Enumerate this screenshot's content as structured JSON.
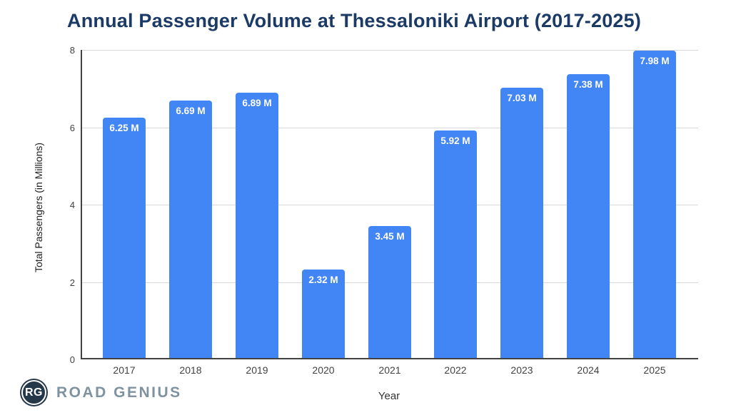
{
  "chart_data": {
    "type": "bar",
    "title": "Annual Passenger Volume at Thessaloniki Airport (2017-2025)",
    "xlabel": "Year",
    "ylabel": "Total Passengers (in Millions)",
    "categories": [
      "2017",
      "2018",
      "2019",
      "2020",
      "2021",
      "2022",
      "2023",
      "2024",
      "2025"
    ],
    "values": [
      6.25,
      6.69,
      6.89,
      2.32,
      3.45,
      5.92,
      7.03,
      7.38,
      7.98
    ],
    "bar_labels": [
      "6.25 M",
      "6.69 M",
      "6.89 M",
      "2.32 M",
      "3.45 M",
      "5.92 M",
      "7.03 M",
      "7.38 M",
      "7.98 M"
    ],
    "ylim": [
      0,
      8
    ],
    "yticks": [
      0,
      2,
      4,
      6,
      8
    ],
    "grid": "horizontal",
    "legend": "none",
    "colors": {
      "bar": "#4285f4",
      "bar_label": "#ffffff",
      "title": "#1b3a66",
      "axis": "#424242",
      "gridline": "#d9d9d9",
      "tick_label": "#424242"
    }
  },
  "branding": {
    "monogram": "RG",
    "name": "ROAD GENIUS"
  }
}
